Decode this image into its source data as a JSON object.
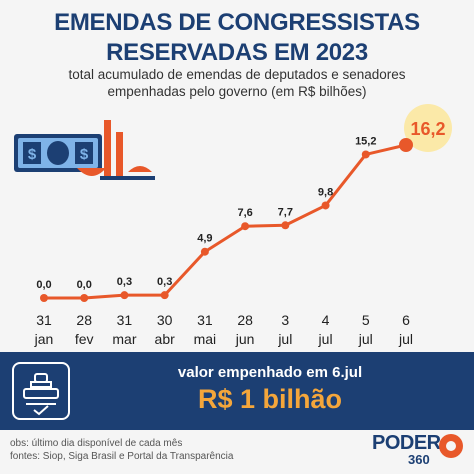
{
  "header": {
    "title_line1": "EMENDAS DE CONGRESSISTAS",
    "title_line2": "RESERVADAS EM 2023",
    "subtitle_line1": "total acumulado de emendas de deputados e senadores",
    "subtitle_line2": "empenhadas pelo governo (em R$ bilhões)"
  },
  "chart_data": {
    "type": "line",
    "title": "EMENDAS DE CONGRESSISTAS RESERVADAS EM 2023",
    "subtitle": "total acumulado de emendas de deputados e senadores empenhadas pelo governo (em R$ bilhões)",
    "x_day": [
      "31",
      "28",
      "31",
      "30",
      "31",
      "28",
      "3",
      "4",
      "5",
      "6"
    ],
    "x_month": [
      "jan",
      "fev",
      "mar",
      "abr",
      "mai",
      "jun",
      "jul",
      "jul",
      "jul",
      "jul"
    ],
    "values": [
      0.0,
      0.0,
      0.3,
      0.3,
      4.9,
      7.6,
      7.7,
      9.8,
      15.2,
      16.2
    ],
    "labels": [
      "0,0",
      "0,0",
      "0,3",
      "0,3",
      "4,9",
      "7,6",
      "7,7",
      "9,8",
      "15,2",
      "16,2"
    ],
    "ylim": [
      0,
      16.2
    ],
    "grid": false,
    "highlight_last": true,
    "colors": {
      "line": "#e8582a",
      "highlight_bg": "#fbe9a8",
      "highlight_text": "#e8582a",
      "label": "#222222"
    }
  },
  "band": {
    "label": "valor empenhado em 6.jul",
    "value": "R$ 1 bilhão",
    "icon": "stamp-icon"
  },
  "footer": {
    "line1": "obs: último dia disponível de cada mês",
    "line2": "fontes: Siop, Siga Brasil e Portal da Transparência"
  },
  "logo": {
    "text": "PODER",
    "sub": "360",
    "icon": "poder360-logo"
  },
  "illustration": {
    "icon": "money-scale-icon"
  },
  "colors": {
    "navy": "#1c3f73",
    "orange": "#e8582a",
    "gold": "#f4a63b",
    "background": "#f5f5f5"
  }
}
